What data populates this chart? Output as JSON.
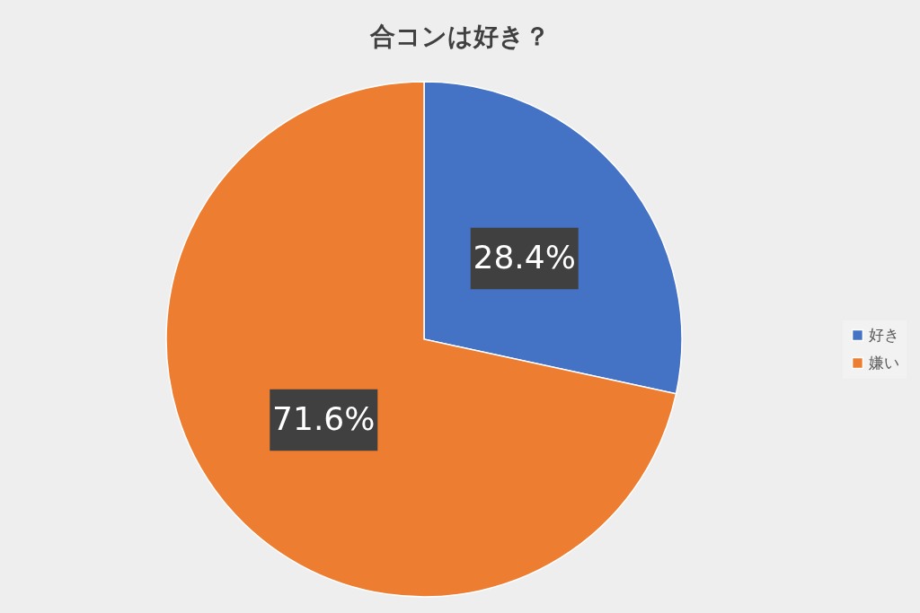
{
  "chart_data": {
    "type": "pie",
    "title": "合コンは好き？",
    "categories": [
      "好き",
      "嫌い"
    ],
    "values": [
      28.4,
      71.6
    ],
    "colors": [
      "#4472c4",
      "#ed7d31"
    ],
    "value_labels": [
      "28.4%",
      "71.6%"
    ],
    "legend": "right"
  }
}
